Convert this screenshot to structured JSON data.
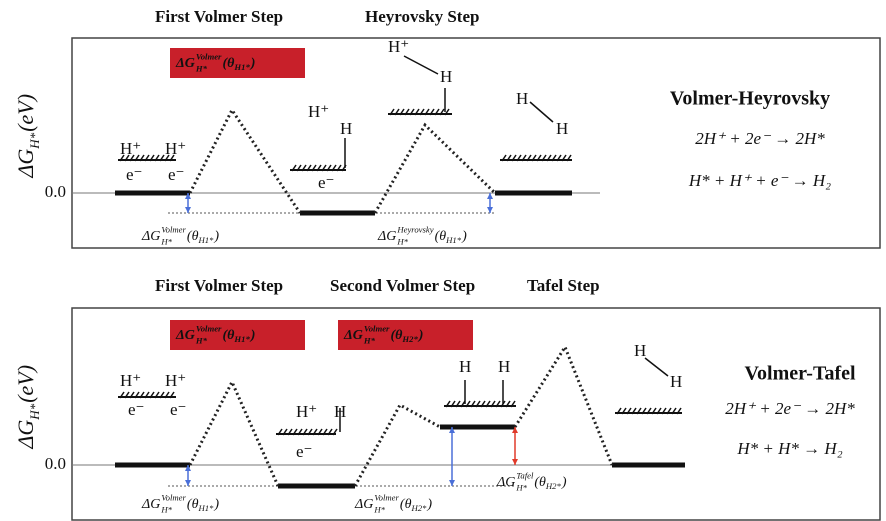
{
  "panels": [
    {
      "steps": [
        "First Volmer Step",
        "Heyrovsky Step"
      ],
      "y_axis": {
        "base": "ΔG",
        "sub": "H*",
        "unit": "(eV)"
      },
      "zero_label": "0.0",
      "highlights": [
        {
          "base": "ΔG",
          "sup": "Volmer",
          "sub": "H*",
          "open": "(θ",
          "arg_sub": "H1*",
          "close": ")"
        }
      ],
      "mechanism": "Volmer-Heyrovsky",
      "equations": [
        "2H⁺ + 2e⁻ → 2H*",
        "H* + H⁺ + e⁻ → H₂"
      ],
      "annotations": [
        {
          "base": "ΔG",
          "sup": "Volmer",
          "sub": "H*",
          "open": "(θ",
          "arg_sub": "H1*",
          "close": ")"
        },
        {
          "base": "ΔG",
          "sup": "Heyrovsky",
          "sub": "H*",
          "open": "(θ",
          "arg_sub": "H1*",
          "close": ")"
        }
      ],
      "species": [
        "H⁺",
        "H⁺",
        "e⁻",
        "e⁻",
        "H⁺",
        "H",
        "e⁻",
        "H⁺",
        "H",
        "H",
        "H"
      ]
    },
    {
      "steps": [
        "First Volmer Step",
        "Second Volmer Step",
        "Tafel Step"
      ],
      "y_axis": {
        "base": "ΔG",
        "sub": "H*",
        "unit": "(eV)"
      },
      "zero_label": "0.0",
      "highlights": [
        {
          "base": "ΔG",
          "sup": "Volmer",
          "sub": "H*",
          "open": "(θ",
          "arg_sub": "H1*",
          "close": ")"
        },
        {
          "base": "ΔG",
          "sup": "Volmer",
          "sub": "H*",
          "open": "(θ",
          "arg_sub": "H2*",
          "close": ")"
        }
      ],
      "mechanism": "Volmer-Tafel",
      "equations": [
        "2H⁺ + 2e⁻ → 2H*",
        "H* + H* → H₂"
      ],
      "annotations": [
        {
          "base": "ΔG",
          "sup": "Volmer",
          "sub": "H*",
          "open": "(θ",
          "arg_sub": "H1*",
          "close": ")"
        },
        {
          "base": "ΔG",
          "sup": "Volmer",
          "sub": "H*",
          "open": "(θ",
          "arg_sub": "H2*",
          "close": ")"
        },
        {
          "base": "ΔG",
          "sup": "Tafel",
          "sub": "H*",
          "open": "(θ",
          "arg_sub": "H2*",
          "close": ")"
        }
      ],
      "species": [
        "H⁺",
        "H⁺",
        "e⁻",
        "e⁻",
        "H⁺",
        "H",
        "e⁻",
        "H",
        "H",
        "H",
        "H"
      ]
    }
  ]
}
